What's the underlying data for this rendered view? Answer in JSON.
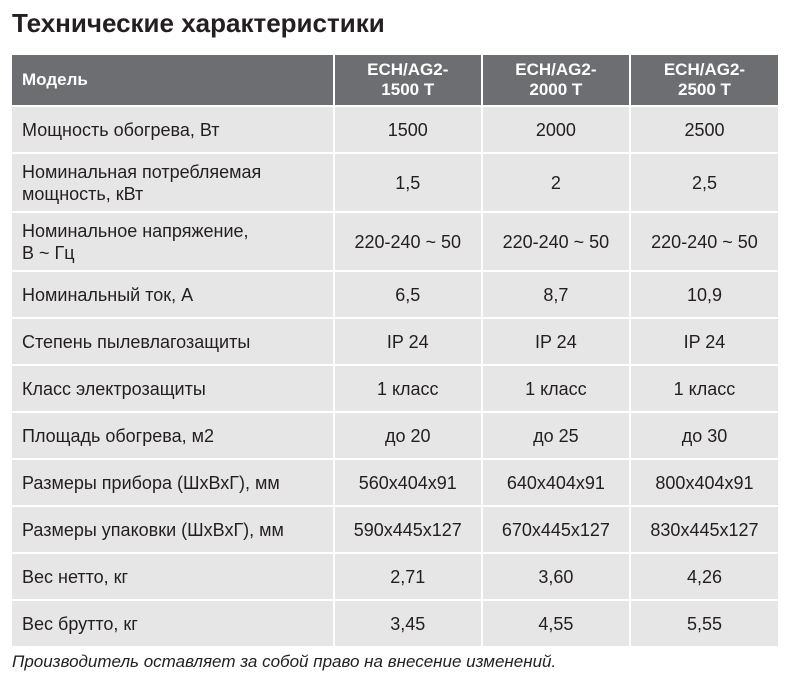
{
  "header": {
    "title": "Технические характеристики"
  },
  "table": {
    "columns": [
      "Модель",
      "ECH/AG2-\n1500 T",
      "ECH/AG2-\n2000 T",
      "ECH/AG2-\n2500 T"
    ],
    "rows": [
      [
        "Мощность обогрева, Вт",
        "1500",
        "2000",
        "2500"
      ],
      [
        "Номинальная потребляемая\nмощность, кВт",
        "1,5",
        "2",
        "2,5"
      ],
      [
        "Номинальное напряжение,\nВ ~ Гц",
        "220-240 ~ 50",
        "220-240 ~ 50",
        "220-240 ~ 50"
      ],
      [
        "Номинальный ток, А",
        "6,5",
        "8,7",
        "10,9"
      ],
      [
        "Степень пылевлагозащиты",
        "IP 24",
        "IP 24",
        "IP 24"
      ],
      [
        "Класс электрозащиты",
        "1 класс",
        "1 класс",
        "1 класс"
      ],
      [
        "Площадь обогрева, м2",
        "до 20",
        "до 25",
        "до 30"
      ],
      [
        "Размеры прибора (ШхВхГ), мм",
        "560x404x91",
        "640x404x91",
        "800x404x91"
      ],
      [
        "Размеры упаковки (ШхВхГ), мм",
        "590x445x127",
        "670x445x127",
        "830x445x127"
      ],
      [
        "Вес нетто, кг",
        "2,71",
        "3,60",
        "4,26"
      ],
      [
        "Вес брутто, кг",
        "3,45",
        "4,55",
        "5,55"
      ]
    ]
  },
  "footnote": "Производитель оставляет за собой право на внесение изменений."
}
